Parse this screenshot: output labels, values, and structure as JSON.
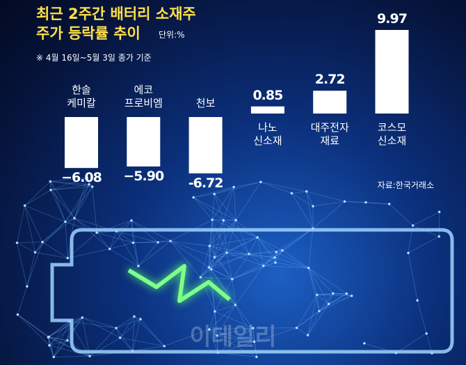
{
  "chart_data": {
    "type": "bar",
    "title": [
      "최근 2주간 배터리 소재주",
      "주가 등락률 추이"
    ],
    "unit": "단위:%",
    "note": "※ 4월 16일~5월 3일 종가 기준",
    "categories": [
      "한솔\n케미칼",
      "에코\n프로비엠",
      "천보",
      "나노\n신소재",
      "대주전자\n재료",
      "코스모\n신소재"
    ],
    "values": [
      -6.08,
      -5.9,
      -6.72,
      0.85,
      2.72,
      9.97
    ],
    "value_labels": [
      "−6.08",
      "−5.90",
      "-6.72",
      "0.85",
      "2.72",
      "9.97"
    ],
    "color": "#ffffff",
    "source": "자료:한국거래소",
    "watermark": "이데일리"
  }
}
